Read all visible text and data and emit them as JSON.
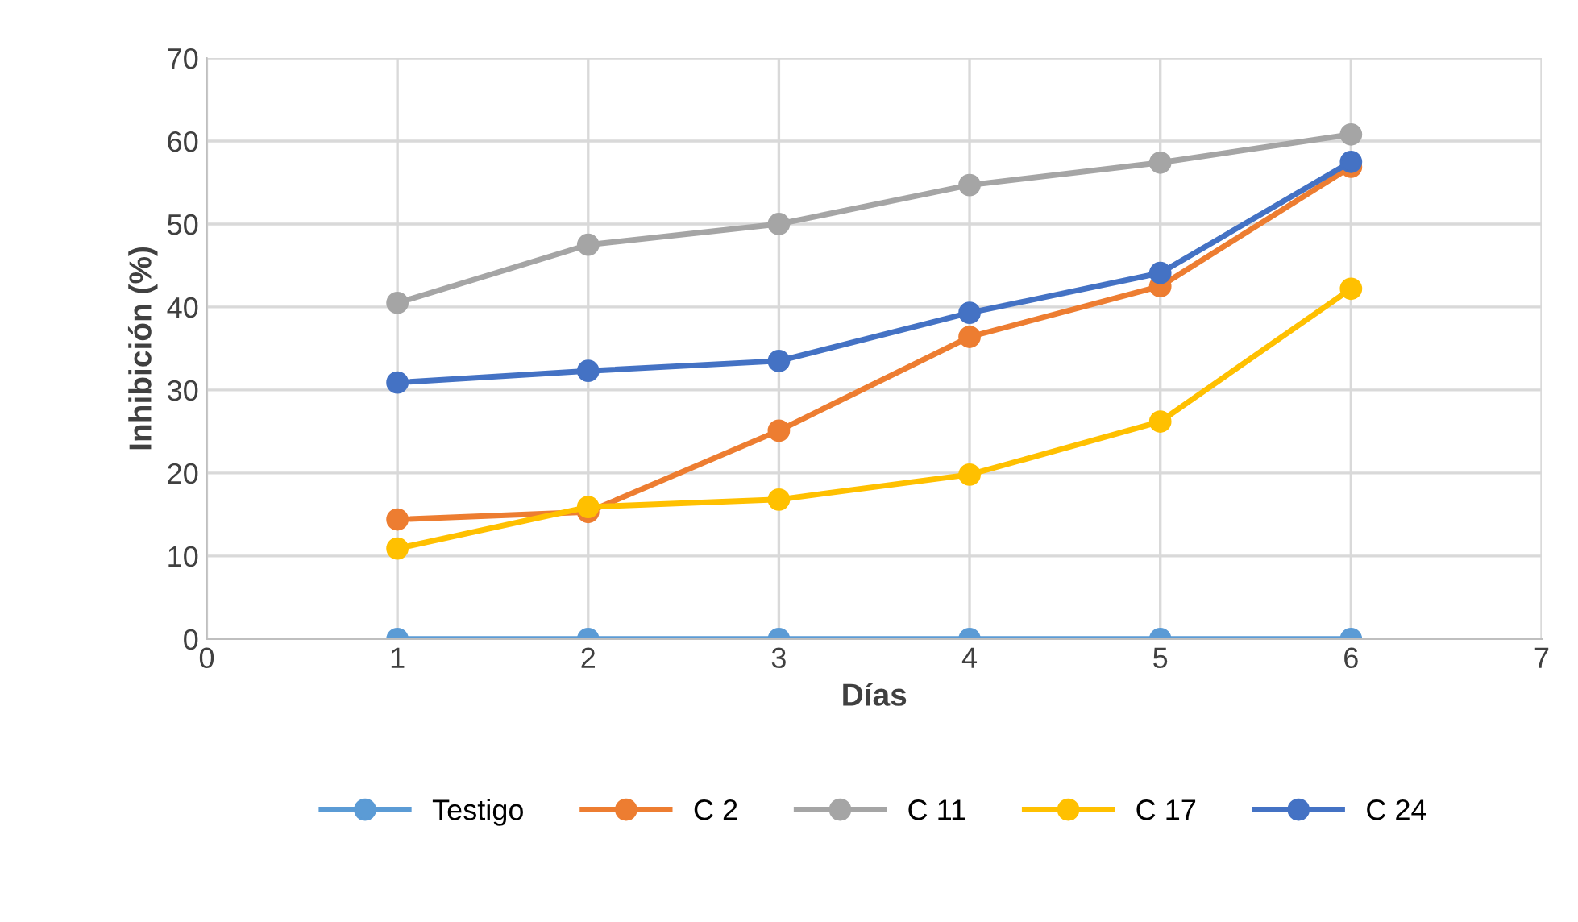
{
  "chart_data": {
    "type": "line",
    "xlabel": "Días",
    "ylabel": "Inhibición (%)",
    "x": [
      1,
      2,
      3,
      4,
      5,
      6
    ],
    "xlim": [
      0,
      7
    ],
    "xticks": [
      0,
      1,
      2,
      3,
      4,
      5,
      6,
      7
    ],
    "ylim": [
      0,
      70
    ],
    "yticks": [
      0,
      10,
      20,
      30,
      40,
      50,
      60,
      70
    ],
    "grid": true,
    "legend": "bottom",
    "marker": "circle",
    "line_style": "solid",
    "series": [
      {
        "name": "Testigo",
        "color": "#5b9bd5",
        "values": [
          0,
          0,
          0,
          0,
          0,
          0
        ]
      },
      {
        "name": "C 2",
        "color": "#ed7d31",
        "values": [
          14.4,
          15.3,
          25.1,
          36.4,
          42.5,
          56.9
        ]
      },
      {
        "name": "C 11",
        "color": "#a5a5a5",
        "values": [
          40.5,
          47.5,
          50.0,
          54.7,
          57.4,
          60.8
        ]
      },
      {
        "name": "C 17",
        "color": "#ffc000",
        "values": [
          10.9,
          15.9,
          16.8,
          19.8,
          26.2,
          42.2
        ]
      },
      {
        "name": "C 24",
        "color": "#4472c4",
        "values": [
          30.9,
          32.3,
          33.5,
          39.3,
          44.1,
          57.5
        ]
      }
    ]
  }
}
